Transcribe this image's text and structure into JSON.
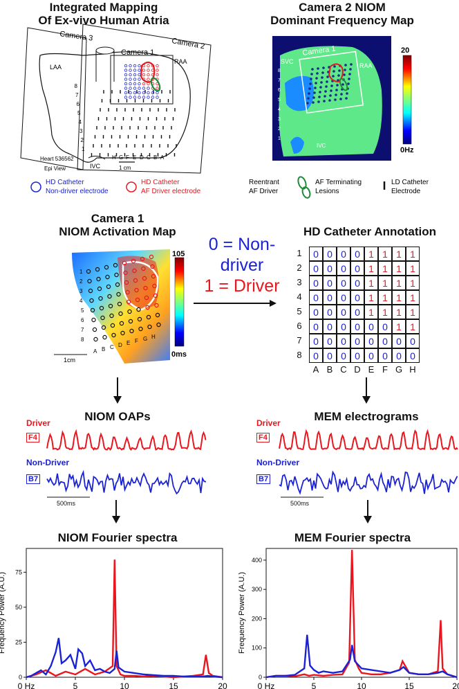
{
  "panelA": {
    "title1": "Integrated Mapping",
    "title2": "Of Ex-vivo Human Atria",
    "camera3": "Camera 3",
    "camera2": "Camera 2",
    "camera1": "Camera 1",
    "laa": "LAA",
    "raa": "RAA",
    "heart_id": "Heart 536562",
    "view": "Epi View",
    "ivc": "IVC",
    "scale": "1 cm",
    "rows": [
      "1",
      "2",
      "3",
      "4",
      "5",
      "6",
      "7",
      "8"
    ],
    "cols": [
      "H",
      "G",
      "F",
      "E",
      "D",
      "C",
      "B",
      "A"
    ]
  },
  "panelB": {
    "title1": "Camera 2 NIOM",
    "title2": "Dominant Frequency Map",
    "svc": "SVC",
    "camera1": "Camera 1",
    "raa": "RAA",
    "ivc": "IVC",
    "cbar_max": "20",
    "cbar_min": "0Hz"
  },
  "legend": {
    "hd_blue1": "HD Catheter",
    "hd_blue2": "Non-driver electrode",
    "hd_red1": "HD Catheter",
    "hd_red2": "AF Driver electrode",
    "reentrant1": "Reentrant",
    "reentrant2": "AF Driver",
    "lesion1": "AF Terminating",
    "lesion2": "Lesions",
    "ld1": "LD Catheter",
    "ld2": "Electrode"
  },
  "panelC": {
    "title1": "Camera 1",
    "title2": "NIOM Activation Map",
    "cbar_max": "105",
    "cbar_min": "0ms",
    "scale": "1cm",
    "rows": [
      "1",
      "2",
      "3",
      "4",
      "5",
      "6",
      "7",
      "8"
    ],
    "cols": [
      "A",
      "B",
      "C",
      "D",
      "E",
      "F",
      "G",
      "H"
    ]
  },
  "binary": {
    "line1": "0 = Non-",
    "line2": "driver",
    "line3": "1 = Driver"
  },
  "annotation": {
    "title": "HD Catheter Annotation",
    "row_labels": [
      "1",
      "2",
      "3",
      "4",
      "5",
      "6",
      "7",
      "8"
    ],
    "col_labels": [
      "A",
      "B",
      "C",
      "D",
      "E",
      "F",
      "G",
      "H"
    ],
    "grid": [
      [
        "0",
        "0",
        "0",
        "0",
        "1",
        "1",
        "1",
        "1"
      ],
      [
        "0",
        "0",
        "0",
        "0",
        "1",
        "1",
        "1",
        "1"
      ],
      [
        "0",
        "0",
        "0",
        "0",
        "1",
        "1",
        "1",
        "1"
      ],
      [
        "0",
        "0",
        "0",
        "0",
        "1",
        "1",
        "1",
        "1"
      ],
      [
        "0",
        "0",
        "0",
        "0",
        "1",
        "1",
        "1",
        "1"
      ],
      [
        "0",
        "0",
        "0",
        "0",
        "0",
        "0",
        "1",
        "1"
      ],
      [
        "0",
        "0",
        "0",
        "0",
        "0",
        "0",
        "0",
        "0"
      ],
      [
        "0",
        "0",
        "0",
        "0",
        "0",
        "0",
        "0",
        "0"
      ]
    ]
  },
  "oaps": {
    "title": "NIOM OAPs",
    "driver": "Driver",
    "driver_lead": "F4",
    "nondriver": "Non-Driver",
    "nondriver_lead": "B7",
    "scale": "500ms"
  },
  "mem": {
    "title": "MEM electrograms",
    "driver": "Driver",
    "driver_lead": "F4",
    "nondriver": "Non-Driver",
    "nondriver_lead": "B7",
    "scale": "500ms"
  },
  "colors": {
    "driver": "#e8161e",
    "nondriver": "#1a22d4",
    "lesion": "#1f8a3a"
  },
  "chart_data": [
    {
      "type": "line",
      "title": "NIOM Fourier spectra",
      "xlabel": "",
      "ylabel": "Frequency Power (A.U.)",
      "xticks": [
        "0 Hz",
        "5",
        "10",
        "15",
        "20"
      ],
      "yticks": [
        "0",
        "25",
        "50",
        "75"
      ],
      "xlim": [
        0,
        20
      ],
      "ylim": [
        0,
        92
      ],
      "series": [
        {
          "color": "#e8161e",
          "x": [
            0,
            1,
            2,
            3,
            4,
            5,
            6,
            7,
            8,
            8.8,
            9,
            9.2,
            9.6,
            10,
            11,
            12,
            13,
            14,
            15,
            16,
            17,
            18,
            18.3,
            18.6,
            19,
            20
          ],
          "values": [
            0,
            2,
            5,
            1,
            4,
            2,
            6,
            2,
            4,
            8,
            84,
            8,
            2,
            1,
            1,
            0.5,
            1,
            0.5,
            0,
            0.5,
            1,
            2,
            16,
            3,
            1,
            0
          ]
        },
        {
          "color": "#1a22d4",
          "x": [
            0,
            0.5,
            1,
            1.5,
            2,
            2.5,
            3,
            3.3,
            3.6,
            4,
            4.5,
            5,
            5.3,
            5.7,
            6,
            6.5,
            7,
            7.5,
            8,
            8.5,
            9,
            9.2,
            9.4,
            10,
            11,
            12,
            13,
            14,
            15,
            16,
            17,
            18,
            18.5,
            19,
            20
          ],
          "values": [
            0,
            1,
            3,
            5,
            2,
            8,
            18,
            28,
            10,
            12,
            16,
            6,
            20,
            17,
            8,
            12,
            5,
            6,
            4,
            3,
            6,
            19,
            7,
            4,
            3,
            2,
            1.5,
            1,
            1,
            0.5,
            0.5,
            0.5,
            1,
            0.5,
            0
          ]
        }
      ]
    },
    {
      "type": "line",
      "title": "MEM Fourier spectra",
      "xlabel": "",
      "ylabel": "Frequency Power (A.U.)",
      "xticks": [
        "0 Hz",
        "5",
        "10",
        "15",
        "20"
      ],
      "yticks": [
        "0",
        "100",
        "200",
        "300",
        "400"
      ],
      "xlim": [
        0,
        20
      ],
      "ylim": [
        0,
        440
      ],
      "series": [
        {
          "color": "#e8161e",
          "x": [
            0,
            1,
            2,
            3,
            4,
            4.5,
            5,
            6,
            7,
            8,
            8.7,
            9,
            9.3,
            9.7,
            10,
            11,
            12,
            13,
            14,
            14.3,
            15,
            16,
            17,
            18,
            18.3,
            18.5,
            19,
            20
          ],
          "values": [
            0,
            5,
            5,
            3,
            10,
            5,
            8,
            5,
            8,
            10,
            50,
            435,
            60,
            30,
            15,
            10,
            10,
            15,
            25,
            55,
            15,
            10,
            10,
            20,
            195,
            30,
            10,
            0
          ]
        },
        {
          "color": "#1a22d4",
          "x": [
            0,
            1,
            2,
            3,
            4,
            4.3,
            4.6,
            5,
            5.5,
            6,
            7,
            8,
            8.8,
            9,
            9.3,
            10,
            11,
            12,
            13,
            14,
            14.4,
            15,
            16,
            17,
            18,
            18.5,
            19,
            20
          ],
          "values": [
            0,
            5,
            5,
            8,
            30,
            145,
            40,
            25,
            15,
            20,
            15,
            20,
            60,
            110,
            55,
            30,
            25,
            20,
            15,
            25,
            35,
            15,
            10,
            10,
            15,
            20,
            10,
            0
          ]
        }
      ]
    }
  ]
}
